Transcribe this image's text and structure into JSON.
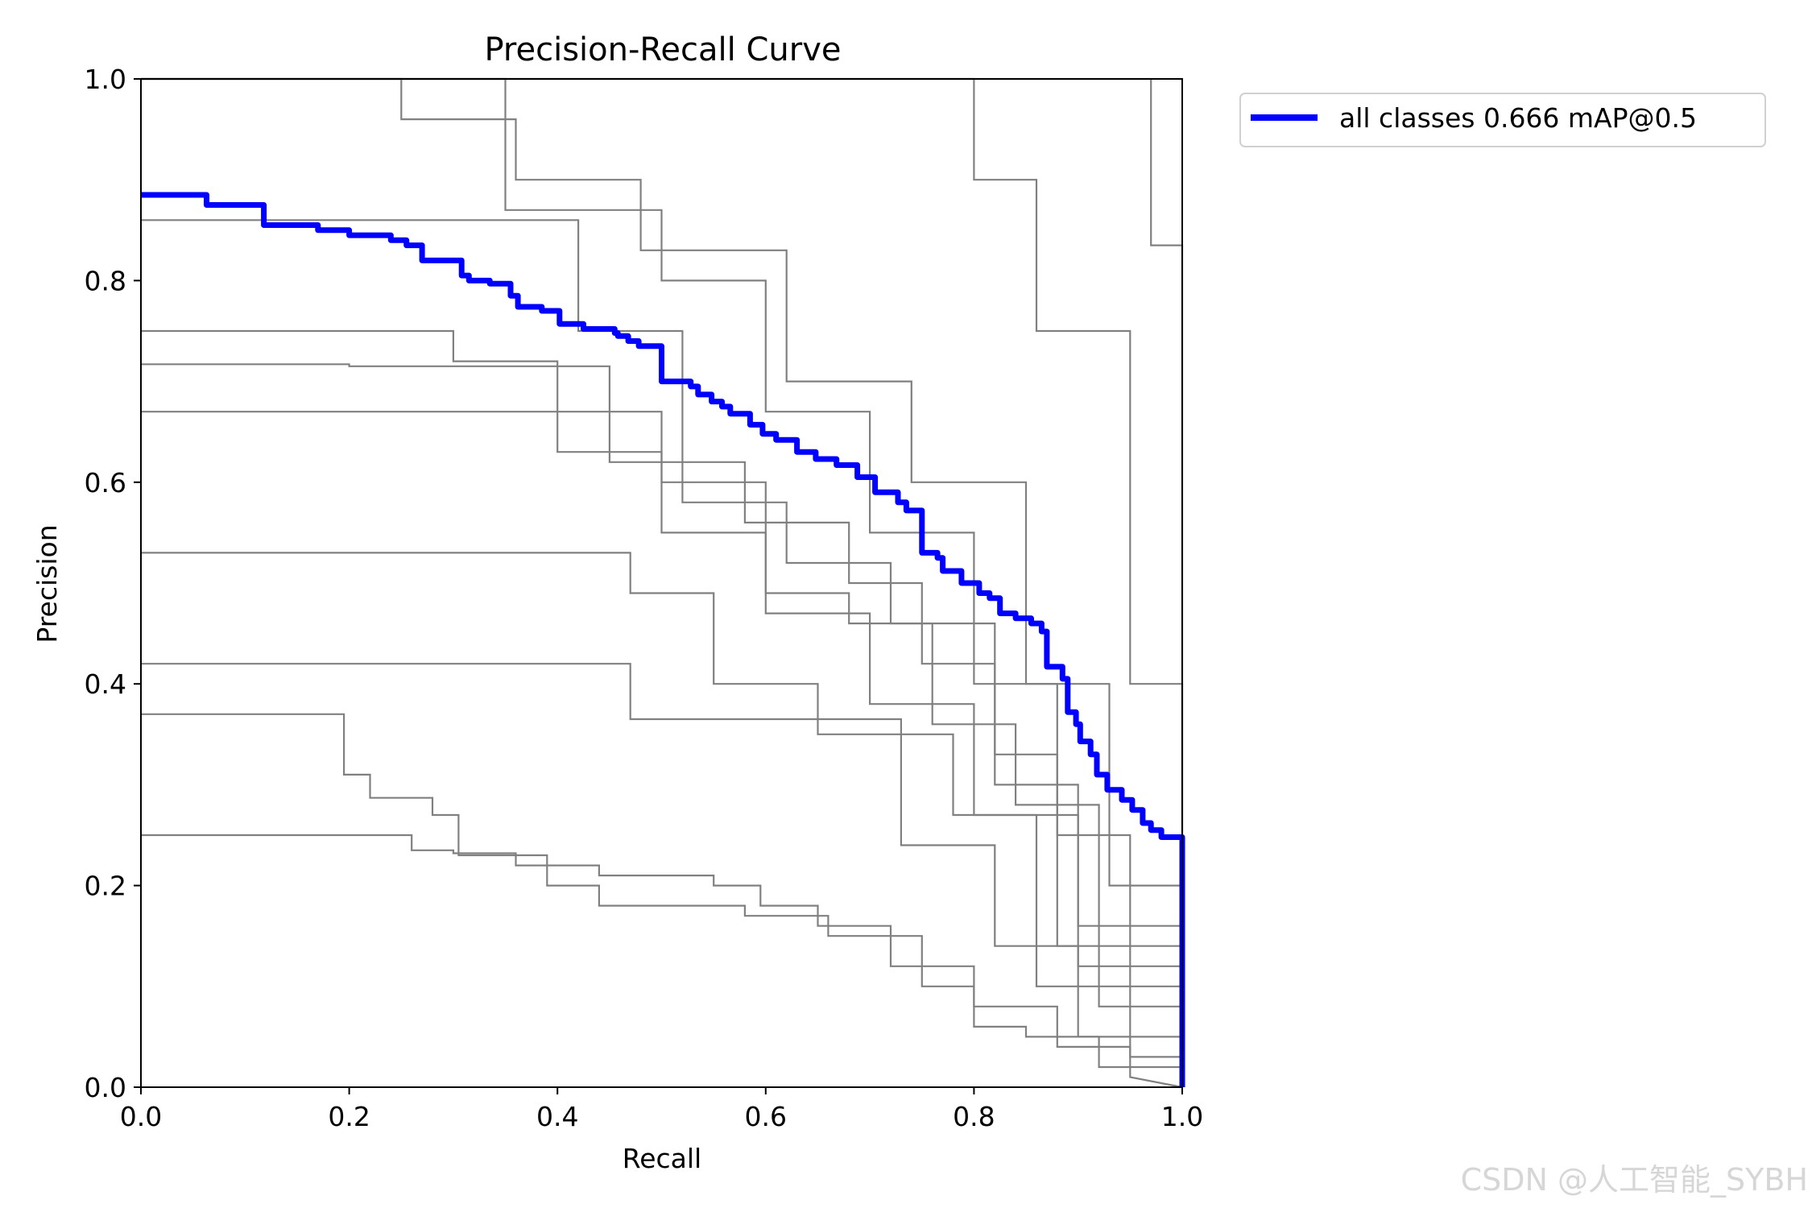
{
  "chart_data": {
    "type": "line",
    "title": "Precision-Recall Curve",
    "xlabel": "Recall",
    "ylabel": "Precision",
    "xlim": [
      0.0,
      1.0
    ],
    "ylim": [
      0.0,
      1.0
    ],
    "xticks": [
      "0.0",
      "0.2",
      "0.4",
      "0.6",
      "0.8",
      "1.0"
    ],
    "yticks": [
      "0.0",
      "0.2",
      "0.4",
      "0.6",
      "0.8",
      "1.0"
    ],
    "grid": false,
    "legend_position": "outside-top-right",
    "legend": [
      {
        "label": "all classes 0.666 mAP@0.5",
        "color": "#0000ff"
      }
    ],
    "class_color": "#808080",
    "all_color": "#0000ff",
    "class_series": [
      {
        "points": [
          [
            0,
            1
          ],
          [
            0.97,
            1
          ],
          [
            0.97,
            0.835
          ],
          [
            1,
            0.835
          ],
          [
            1,
            0
          ]
        ]
      },
      {
        "points": [
          [
            0,
            1
          ],
          [
            0.8,
            1
          ],
          [
            0.8,
            0.9
          ],
          [
            0.86,
            0.9
          ],
          [
            0.86,
            0.75
          ],
          [
            0.95,
            0.75
          ],
          [
            0.95,
            0.4
          ],
          [
            1,
            0.4
          ],
          [
            1,
            0
          ]
        ]
      },
      {
        "points": [
          [
            0,
            1
          ],
          [
            0.25,
            1
          ],
          [
            0.25,
            0.96
          ],
          [
            0.36,
            0.96
          ],
          [
            0.36,
            0.9
          ],
          [
            0.48,
            0.9
          ],
          [
            0.48,
            0.83
          ],
          [
            0.62,
            0.83
          ],
          [
            0.62,
            0.7
          ],
          [
            0.74,
            0.7
          ],
          [
            0.74,
            0.6
          ],
          [
            0.85,
            0.6
          ],
          [
            0.85,
            0.4
          ],
          [
            0.93,
            0.4
          ],
          [
            0.93,
            0.2
          ],
          [
            1,
            0.2
          ],
          [
            1,
            0
          ]
        ]
      },
      {
        "points": [
          [
            0,
            1
          ],
          [
            0.35,
            1
          ],
          [
            0.35,
            0.87
          ],
          [
            0.5,
            0.87
          ],
          [
            0.5,
            0.8
          ],
          [
            0.6,
            0.8
          ],
          [
            0.6,
            0.67
          ],
          [
            0.7,
            0.67
          ],
          [
            0.7,
            0.55
          ],
          [
            0.8,
            0.55
          ],
          [
            0.8,
            0.4
          ],
          [
            0.88,
            0.4
          ],
          [
            0.88,
            0.25
          ],
          [
            0.95,
            0.25
          ],
          [
            0.95,
            0.1
          ],
          [
            1,
            0.1
          ],
          [
            1,
            0
          ]
        ]
      },
      {
        "points": [
          [
            0,
            0.86
          ],
          [
            0.42,
            0.86
          ],
          [
            0.42,
            0.75
          ],
          [
            0.52,
            0.75
          ],
          [
            0.52,
            0.58
          ],
          [
            0.62,
            0.58
          ],
          [
            0.62,
            0.52
          ],
          [
            0.72,
            0.52
          ],
          [
            0.72,
            0.46
          ],
          [
            0.82,
            0.46
          ],
          [
            0.82,
            0.3
          ],
          [
            0.9,
            0.3
          ],
          [
            0.9,
            0.12
          ],
          [
            1,
            0.12
          ],
          [
            1,
            0
          ]
        ]
      },
      {
        "points": [
          [
            0,
            0.75
          ],
          [
            0.3,
            0.75
          ],
          [
            0.3,
            0.72
          ],
          [
            0.4,
            0.72
          ],
          [
            0.4,
            0.63
          ],
          [
            0.5,
            0.63
          ],
          [
            0.5,
            0.55
          ],
          [
            0.6,
            0.55
          ],
          [
            0.6,
            0.47
          ],
          [
            0.7,
            0.47
          ],
          [
            0.7,
            0.38
          ],
          [
            0.8,
            0.38
          ],
          [
            0.8,
            0.27
          ],
          [
            0.9,
            0.27
          ],
          [
            0.9,
            0.16
          ],
          [
            1,
            0.16
          ],
          [
            1,
            0
          ]
        ]
      },
      {
        "points": [
          [
            0,
            0.717
          ],
          [
            0.2,
            0.717
          ],
          [
            0.2,
            0.715
          ],
          [
            0.45,
            0.715
          ],
          [
            0.45,
            0.62
          ],
          [
            0.58,
            0.62
          ],
          [
            0.58,
            0.56
          ],
          [
            0.68,
            0.56
          ],
          [
            0.68,
            0.5
          ],
          [
            0.75,
            0.5
          ],
          [
            0.75,
            0.42
          ],
          [
            0.82,
            0.42
          ],
          [
            0.82,
            0.33
          ],
          [
            0.88,
            0.33
          ],
          [
            0.88,
            0.14
          ],
          [
            1,
            0.14
          ],
          [
            1,
            0
          ]
        ]
      },
      {
        "points": [
          [
            0,
            0.67
          ],
          [
            0.5,
            0.67
          ],
          [
            0.5,
            0.6
          ],
          [
            0.6,
            0.6
          ],
          [
            0.6,
            0.49
          ],
          [
            0.68,
            0.49
          ],
          [
            0.68,
            0.46
          ],
          [
            0.76,
            0.46
          ],
          [
            0.76,
            0.36
          ],
          [
            0.84,
            0.36
          ],
          [
            0.84,
            0.28
          ],
          [
            0.92,
            0.28
          ],
          [
            0.92,
            0.08
          ],
          [
            1,
            0.08
          ],
          [
            1,
            0
          ]
        ]
      },
      {
        "points": [
          [
            0,
            0.53
          ],
          [
            0.47,
            0.53
          ],
          [
            0.47,
            0.49
          ],
          [
            0.55,
            0.49
          ],
          [
            0.55,
            0.4
          ],
          [
            0.65,
            0.4
          ],
          [
            0.65,
            0.35
          ],
          [
            0.78,
            0.35
          ],
          [
            0.78,
            0.27
          ],
          [
            0.86,
            0.27
          ],
          [
            0.86,
            0.1
          ],
          [
            0.95,
            0.1
          ],
          [
            0.95,
            0.03
          ],
          [
            1,
            0.03
          ],
          [
            1,
            0
          ]
        ]
      },
      {
        "points": [
          [
            0,
            0.42
          ],
          [
            0.47,
            0.42
          ],
          [
            0.47,
            0.365
          ],
          [
            0.73,
            0.365
          ],
          [
            0.73,
            0.24
          ],
          [
            0.82,
            0.24
          ],
          [
            0.82,
            0.14
          ],
          [
            0.9,
            0.14
          ],
          [
            0.9,
            0.05
          ],
          [
            1,
            0.05
          ],
          [
            1,
            0
          ]
        ]
      },
      {
        "points": [
          [
            0,
            0.37
          ],
          [
            0.195,
            0.37
          ],
          [
            0.195,
            0.31
          ],
          [
            0.22,
            0.31
          ],
          [
            0.22,
            0.287
          ],
          [
            0.28,
            0.287
          ],
          [
            0.28,
            0.27
          ],
          [
            0.305,
            0.27
          ],
          [
            0.305,
            0.23
          ],
          [
            0.39,
            0.23
          ],
          [
            0.39,
            0.2
          ],
          [
            0.44,
            0.2
          ],
          [
            0.44,
            0.18
          ],
          [
            0.58,
            0.18
          ],
          [
            0.58,
            0.17
          ],
          [
            0.66,
            0.17
          ],
          [
            0.66,
            0.15
          ],
          [
            0.75,
            0.15
          ],
          [
            0.75,
            0.1
          ],
          [
            0.8,
            0.1
          ],
          [
            0.8,
            0.06
          ],
          [
            0.85,
            0.06
          ],
          [
            0.85,
            0.05
          ],
          [
            0.92,
            0.05
          ],
          [
            0.92,
            0.02
          ],
          [
            1,
            0.02
          ],
          [
            1,
            0
          ]
        ]
      },
      {
        "points": [
          [
            0,
            0.25
          ],
          [
            0.26,
            0.25
          ],
          [
            0.26,
            0.235
          ],
          [
            0.3,
            0.235
          ],
          [
            0.3,
            0.232
          ],
          [
            0.36,
            0.232
          ],
          [
            0.36,
            0.22
          ],
          [
            0.44,
            0.22
          ],
          [
            0.44,
            0.21
          ],
          [
            0.55,
            0.21
          ],
          [
            0.55,
            0.2
          ],
          [
            0.595,
            0.2
          ],
          [
            0.595,
            0.18
          ],
          [
            0.65,
            0.18
          ],
          [
            0.65,
            0.16
          ],
          [
            0.72,
            0.16
          ],
          [
            0.72,
            0.12
          ],
          [
            0.8,
            0.12
          ],
          [
            0.8,
            0.08
          ],
          [
            0.88,
            0.08
          ],
          [
            0.88,
            0.04
          ],
          [
            0.95,
            0.04
          ],
          [
            0.95,
            0.01
          ],
          [
            1,
            0
          ]
        ]
      }
    ],
    "all_series": {
      "points": [
        [
          0,
          0.885
        ],
        [
          0.063,
          0.885
        ],
        [
          0.063,
          0.875
        ],
        [
          0.118,
          0.875
        ],
        [
          0.118,
          0.855
        ],
        [
          0.17,
          0.855
        ],
        [
          0.17,
          0.85
        ],
        [
          0.2,
          0.85
        ],
        [
          0.2,
          0.845
        ],
        [
          0.24,
          0.845
        ],
        [
          0.24,
          0.84
        ],
        [
          0.255,
          0.84
        ],
        [
          0.255,
          0.835
        ],
        [
          0.27,
          0.835
        ],
        [
          0.27,
          0.82
        ],
        [
          0.308,
          0.82
        ],
        [
          0.308,
          0.805
        ],
        [
          0.315,
          0.805
        ],
        [
          0.315,
          0.8
        ],
        [
          0.335,
          0.8
        ],
        [
          0.335,
          0.797
        ],
        [
          0.355,
          0.797
        ],
        [
          0.355,
          0.785
        ],
        [
          0.362,
          0.785
        ],
        [
          0.362,
          0.774
        ],
        [
          0.385,
          0.774
        ],
        [
          0.385,
          0.77
        ],
        [
          0.402,
          0.77
        ],
        [
          0.402,
          0.757
        ],
        [
          0.425,
          0.757
        ],
        [
          0.425,
          0.752
        ],
        [
          0.455,
          0.752
        ],
        [
          0.455,
          0.748
        ],
        [
          0.458,
          0.748
        ],
        [
          0.458,
          0.745
        ],
        [
          0.468,
          0.745
        ],
        [
          0.468,
          0.74
        ],
        [
          0.478,
          0.74
        ],
        [
          0.478,
          0.735
        ],
        [
          0.5,
          0.735
        ],
        [
          0.5,
          0.7
        ],
        [
          0.528,
          0.7
        ],
        [
          0.528,
          0.695
        ],
        [
          0.535,
          0.695
        ],
        [
          0.535,
          0.687
        ],
        [
          0.548,
          0.687
        ],
        [
          0.548,
          0.68
        ],
        [
          0.558,
          0.68
        ],
        [
          0.558,
          0.675
        ],
        [
          0.566,
          0.675
        ],
        [
          0.566,
          0.668
        ],
        [
          0.585,
          0.668
        ],
        [
          0.585,
          0.657
        ],
        [
          0.597,
          0.657
        ],
        [
          0.597,
          0.648
        ],
        [
          0.61,
          0.648
        ],
        [
          0.61,
          0.642
        ],
        [
          0.63,
          0.642
        ],
        [
          0.63,
          0.63
        ],
        [
          0.648,
          0.63
        ],
        [
          0.648,
          0.623
        ],
        [
          0.668,
          0.623
        ],
        [
          0.668,
          0.617
        ],
        [
          0.688,
          0.617
        ],
        [
          0.688,
          0.605
        ],
        [
          0.705,
          0.605
        ],
        [
          0.705,
          0.59
        ],
        [
          0.727,
          0.59
        ],
        [
          0.727,
          0.58
        ],
        [
          0.735,
          0.58
        ],
        [
          0.735,
          0.572
        ],
        [
          0.75,
          0.572
        ],
        [
          0.75,
          0.53
        ],
        [
          0.765,
          0.53
        ],
        [
          0.765,
          0.525
        ],
        [
          0.77,
          0.525
        ],
        [
          0.77,
          0.512
        ],
        [
          0.788,
          0.512
        ],
        [
          0.788,
          0.5
        ],
        [
          0.805,
          0.5
        ],
        [
          0.805,
          0.49
        ],
        [
          0.815,
          0.49
        ],
        [
          0.815,
          0.485
        ],
        [
          0.825,
          0.485
        ],
        [
          0.825,
          0.47
        ],
        [
          0.84,
          0.47
        ],
        [
          0.84,
          0.465
        ],
        [
          0.855,
          0.465
        ],
        [
          0.855,
          0.46
        ],
        [
          0.865,
          0.46
        ],
        [
          0.865,
          0.452
        ],
        [
          0.87,
          0.452
        ],
        [
          0.87,
          0.417
        ],
        [
          0.885,
          0.417
        ],
        [
          0.885,
          0.405
        ],
        [
          0.89,
          0.405
        ],
        [
          0.89,
          0.372
        ],
        [
          0.898,
          0.372
        ],
        [
          0.898,
          0.36
        ],
        [
          0.902,
          0.36
        ],
        [
          0.902,
          0.343
        ],
        [
          0.912,
          0.343
        ],
        [
          0.912,
          0.33
        ],
        [
          0.918,
          0.33
        ],
        [
          0.918,
          0.31
        ],
        [
          0.928,
          0.31
        ],
        [
          0.928,
          0.295
        ],
        [
          0.942,
          0.295
        ],
        [
          0.942,
          0.285
        ],
        [
          0.952,
          0.285
        ],
        [
          0.952,
          0.275
        ],
        [
          0.962,
          0.275
        ],
        [
          0.962,
          0.262
        ],
        [
          0.97,
          0.262
        ],
        [
          0.97,
          0.255
        ],
        [
          0.98,
          0.255
        ],
        [
          0.98,
          0.248
        ],
        [
          1,
          0.248
        ],
        [
          1,
          0
        ]
      ]
    }
  },
  "watermark": "CSDN @人工智能_SYBH"
}
